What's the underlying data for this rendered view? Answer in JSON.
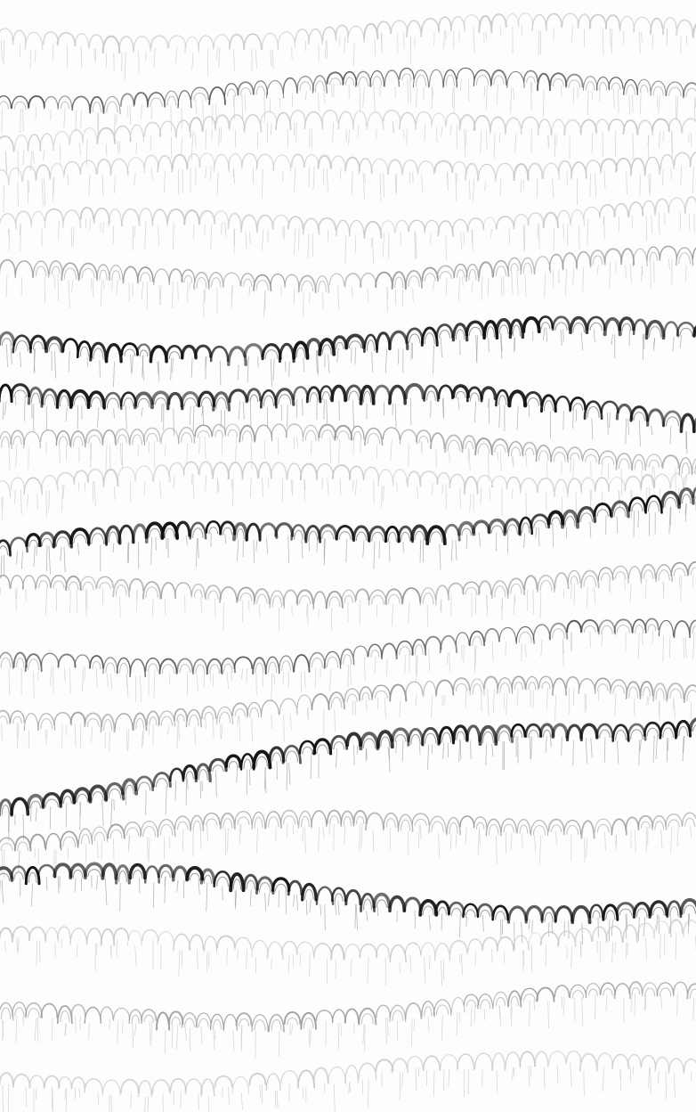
{
  "image": {
    "subject": "marbled-paper-endpaper",
    "palette": {
      "paper": "#fdfdfc",
      "ink_dark": "#111111",
      "ink_mid": "#555555",
      "ink_light": "#9a9a9a",
      "ink_faint": "#c8c8c8"
    }
  }
}
